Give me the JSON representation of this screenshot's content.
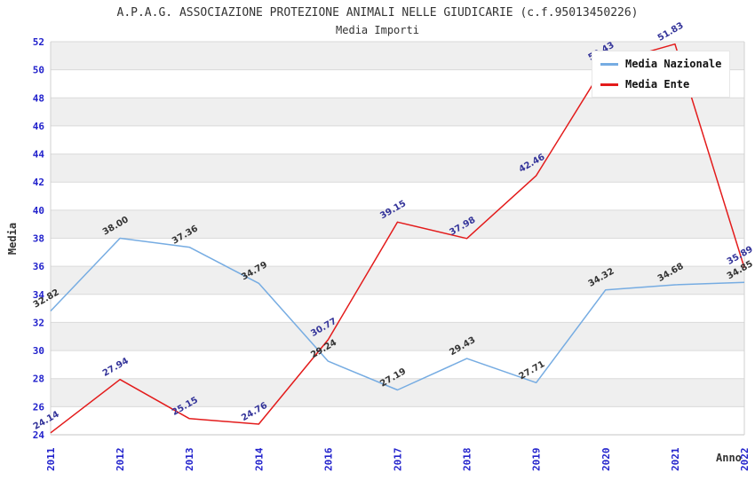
{
  "title": "A.P.A.G. ASSOCIAZIONE PROTEZIONE ANIMALI NELLE GIUDICARIE (c.f.95013450226)",
  "subtitle": "Media Importi",
  "chart_data": {
    "type": "line",
    "title": "A.P.A.G. ASSOCIAZIONE PROTEZIONE ANIMALI NELLE GIUDICARIE (c.f.95013450226)",
    "subtitle": "Media Importi",
    "xlabel": "Anno",
    "ylabel": "Media",
    "categories": [
      "2011",
      "2012",
      "2013",
      "2014",
      "2016",
      "2017",
      "2018",
      "2019",
      "2020",
      "2021",
      "2022"
    ],
    "series": [
      {
        "name": "Media Nazionale",
        "color": "#76ace2",
        "label_color": "#333333",
        "values": [
          32.82,
          38.0,
          37.36,
          34.79,
          29.24,
          27.19,
          29.43,
          27.71,
          34.32,
          34.68,
          34.85
        ]
      },
      {
        "name": "Media Ente",
        "color": "#e31b1b",
        "label_color": "#333399",
        "values": [
          24.14,
          27.94,
          25.15,
          24.76,
          30.77,
          39.15,
          37.98,
          42.46,
          50.43,
          51.83,
          35.89
        ]
      }
    ],
    "ylim": [
      24,
      52
    ],
    "ytick_step": 2,
    "grid": true,
    "legend_position": "top-right",
    "band_color_even": "#ffffff",
    "band_color_odd": "#efefef",
    "gridline_color": "#dadada",
    "tick_label_color": "#2222cc"
  }
}
